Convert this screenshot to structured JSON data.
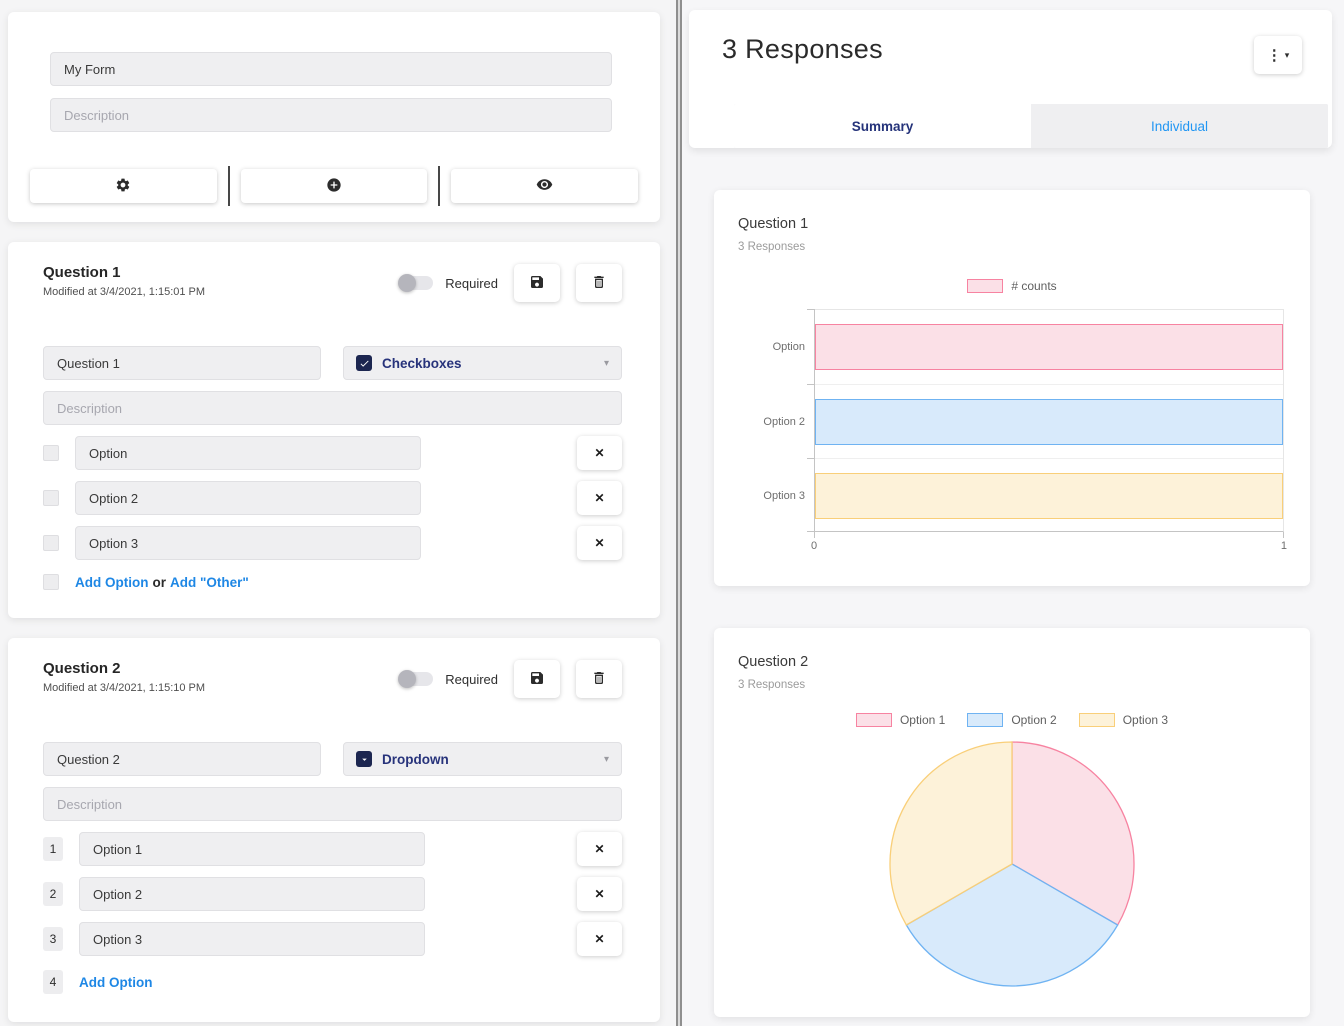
{
  "left_panel": {
    "form_header": {
      "title_value": "My Form",
      "description_placeholder": "Description"
    },
    "questions": [
      {
        "title": "Question 1",
        "modified": "Modified at 3/4/2021, 1:15:01 PM",
        "required_label": "Required",
        "question_value": "Question 1",
        "type_label": "Checkboxes",
        "description_placeholder": "Description",
        "options": [
          "Option",
          "Option 2",
          "Option 3"
        ],
        "add_option_label": "Add Option",
        "or_label": "or",
        "add_other_label": "Add \"Other\"",
        "close_glyph": "✕"
      },
      {
        "title": "Question 2",
        "modified": "Modified at 3/4/2021, 1:15:10 PM",
        "required_label": "Required",
        "question_value": "Question 2",
        "type_label": "Dropdown",
        "description_placeholder": "Description",
        "options": [
          "Option 1",
          "Option 2",
          "Option 3"
        ],
        "row_numbers": [
          "1",
          "2",
          "3",
          "4"
        ],
        "add_option_label": "Add Option",
        "close_glyph": "✕"
      }
    ]
  },
  "right_panel": {
    "title": "3 Responses",
    "menu_glyph": "⋮",
    "menu_caret": "▾",
    "tabs": [
      {
        "label": "Summary",
        "active": true
      },
      {
        "label": "Individual",
        "active": false
      }
    ]
  },
  "glyphs": {
    "select_caret": "▾"
  },
  "chart_data": [
    {
      "type": "bar",
      "orientation": "horizontal",
      "title": "Question 1",
      "subtitle": "3 Responses",
      "legend": [
        "# counts"
      ],
      "categories": [
        "Option",
        "Option 2",
        "Option 3"
      ],
      "values": [
        1,
        1,
        1
      ],
      "xlim": [
        0,
        1
      ],
      "xticks": [
        "0",
        "1"
      ],
      "grid": true,
      "legend_position": "top",
      "series_style": {
        "fill": [
          "#FBE0E7",
          "#D8EAFB",
          "#FDF2D9"
        ],
        "border": [
          "#F783A1",
          "#6FB3F2",
          "#F9CF79"
        ]
      }
    },
    {
      "type": "pie",
      "title": "Question 2",
      "subtitle": "3 Responses",
      "labels": [
        "Option 1",
        "Option 2",
        "Option 3"
      ],
      "values": [
        1,
        1,
        1
      ],
      "legend_position": "top",
      "start_angle_deg": -90,
      "direction": "clockwise",
      "series_style": {
        "fill": [
          "#FBE0E7",
          "#D8EAFB",
          "#FDF2D9"
        ],
        "border": [
          "#F783A1",
          "#6FB3F2",
          "#F9CF79"
        ]
      }
    }
  ]
}
